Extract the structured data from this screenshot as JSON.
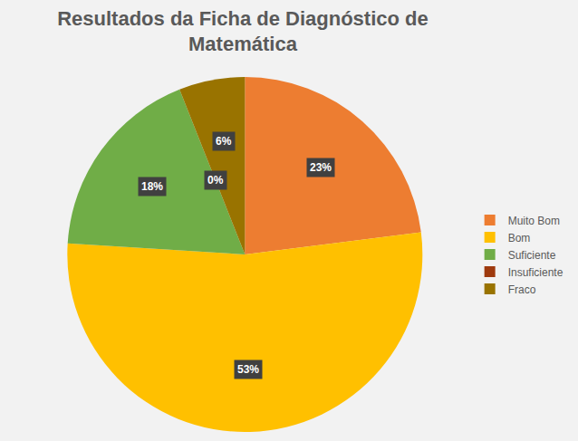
{
  "chart_data": {
    "type": "pie",
    "title": "Resultados da Ficha de Diagnóstico de Matemática",
    "categories": [
      "Muito Bom",
      "Bom",
      "Suficiente",
      "Insuficiente",
      "Fraco"
    ],
    "values": [
      23,
      53,
      18,
      0,
      6
    ],
    "value_labels": [
      "23%",
      "53%",
      "18%",
      "0%",
      "6%"
    ],
    "colors": [
      "#ED7D31",
      "#FFC000",
      "#70AD47",
      "#9E3A0E",
      "#997300"
    ],
    "data_labels": true,
    "legend": "right"
  }
}
